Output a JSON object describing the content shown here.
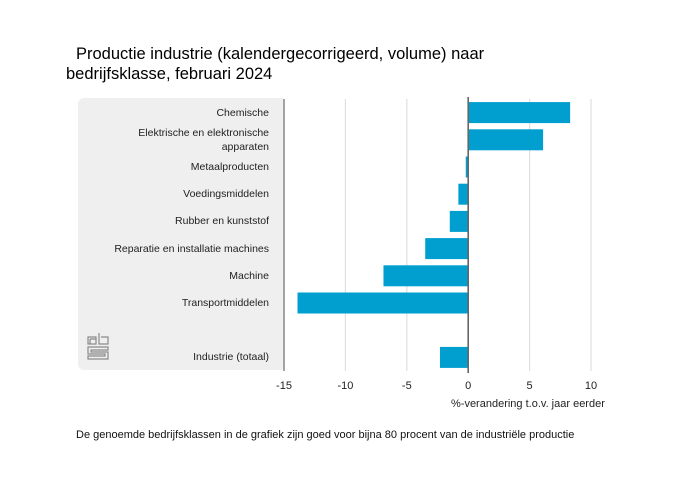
{
  "title_line1": "Productie industrie (kalendergecorrigeerd, volume) naar",
  "title_line2": "bedrijfsklasse, februari 2024",
  "footnote": "De genoemde bedrijfsklassen in de grafiek zijn goed voor bijna 80 procent van de industriële productie",
  "logo": "cbs-logo-icon",
  "colors": {
    "bar": "#009fd0",
    "panel": "#efefef",
    "grid": "#e0e0e0",
    "axis": "#666666"
  },
  "chart_data": {
    "type": "bar",
    "orientation": "horizontal",
    "title": "Productie industrie (kalendergecorrigeerd, volume) naar bedrijfsklasse, februari 2024",
    "xlabel": "%-verandering t.o.v. jaar eerder",
    "ylabel": "",
    "xlim": [
      -15,
      10
    ],
    "xticks": [
      -15,
      -10,
      -5,
      0,
      5,
      10
    ],
    "xtick_labels": [
      "-15",
      "-10",
      "-5",
      "0",
      "5",
      "10"
    ],
    "grid": true,
    "categories": [
      [
        "Chemische"
      ],
      [
        "Elektrische en elektronische",
        "apparaten"
      ],
      [
        "Metaalproducten"
      ],
      [
        "Voedingsmiddelen"
      ],
      [
        "Rubber en kunststof"
      ],
      [
        "Reparatie en installatie machines"
      ],
      [
        "Machine"
      ],
      [
        "Transportmiddelen"
      ],
      [],
      [
        "Industrie (totaal)"
      ]
    ],
    "values": [
      8.3,
      6.1,
      -0.2,
      -0.8,
      -1.5,
      -3.5,
      -6.9,
      -13.9,
      null,
      -2.3
    ]
  }
}
